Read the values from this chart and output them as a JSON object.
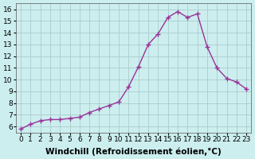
{
  "x": [
    0,
    1,
    2,
    3,
    4,
    5,
    6,
    7,
    8,
    9,
    10,
    11,
    12,
    13,
    14,
    15,
    16,
    17,
    18,
    19,
    20,
    21,
    22,
    23
  ],
  "y": [
    5.8,
    6.2,
    6.5,
    6.6,
    6.6,
    6.7,
    6.8,
    7.2,
    7.5,
    7.8,
    8.1,
    9.4,
    11.1,
    13.0,
    13.9,
    15.3,
    15.8,
    15.3,
    15.6,
    12.8,
    11.0,
    10.1,
    9.8,
    9.2
  ],
  "line_color": "#993399",
  "marker": "+",
  "marker_size": 5,
  "bg_color": "#cceeee",
  "grid_color": "#aacccc",
  "xlabel": "Windchill (Refroidissement éolien,°C)",
  "xlabel_fontsize": 7.5,
  "ylabel_ticks": [
    6,
    7,
    8,
    9,
    10,
    11,
    12,
    13,
    14,
    15,
    16
  ],
  "xlim": [
    -0.5,
    23.5
  ],
  "ylim": [
    5.5,
    16.5
  ],
  "tick_fontsize": 6.5
}
